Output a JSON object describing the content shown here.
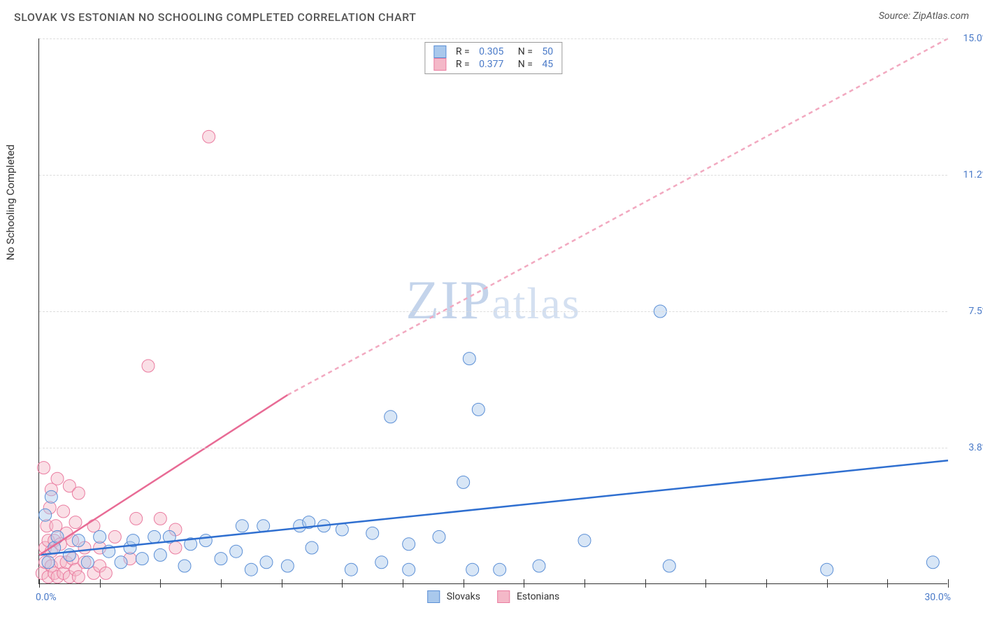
{
  "title": "SLOVAK VS ESTONIAN NO SCHOOLING COMPLETED CORRELATION CHART",
  "source_prefix": "Source: ",
  "source_name": "ZipAtlas.com",
  "watermark_big": "ZIP",
  "watermark_small": "atlas",
  "y_axis_title": "No Schooling Completed",
  "chart": {
    "type": "scatter",
    "background_color": "#ffffff",
    "grid_color": "#dddddd",
    "axis_color": "#333333",
    "xlim": [
      0,
      30
    ],
    "ylim": [
      0,
      15
    ],
    "x_start_label": "0.0%",
    "x_end_label": "30.0%",
    "x_ticks": [
      0,
      2,
      4,
      6,
      8,
      10,
      12,
      14,
      16,
      18,
      20,
      22,
      24,
      26,
      28,
      30
    ],
    "y_gridlines": [
      {
        "value": 3.75,
        "label": "3.8%"
      },
      {
        "value": 7.5,
        "label": "7.5%"
      },
      {
        "value": 11.25,
        "label": "11.2%"
      },
      {
        "value": 15.0,
        "label": "15.0%"
      }
    ],
    "series": [
      {
        "key": "slovaks",
        "label": "Slovaks",
        "fill_color": "#a9c8ec",
        "stroke_color": "#5b8fd6",
        "r_value": "0.305",
        "n_value": "50",
        "trend": {
          "x1": 0,
          "y1": 0.8,
          "x2": 30,
          "y2": 3.4,
          "color": "#2f6fd0",
          "dashed": false
        },
        "trend_proj": {
          "x1": 30,
          "y1": 3.4,
          "x2": 30,
          "y2": 3.4
        },
        "point_radius": 9,
        "points": [
          [
            0.2,
            1.9
          ],
          [
            0.3,
            0.6
          ],
          [
            0.4,
            2.4
          ],
          [
            0.5,
            1.0
          ],
          [
            0.6,
            1.3
          ],
          [
            1.0,
            0.8
          ],
          [
            1.3,
            1.2
          ],
          [
            1.6,
            0.6
          ],
          [
            2.0,
            1.3
          ],
          [
            2.3,
            0.9
          ],
          [
            2.7,
            0.6
          ],
          [
            3.0,
            1.0
          ],
          [
            3.1,
            1.2
          ],
          [
            3.4,
            0.7
          ],
          [
            3.8,
            1.3
          ],
          [
            4.0,
            0.8
          ],
          [
            4.3,
            1.3
          ],
          [
            4.8,
            0.5
          ],
          [
            5.0,
            1.1
          ],
          [
            5.5,
            1.2
          ],
          [
            6.0,
            0.7
          ],
          [
            6.5,
            0.9
          ],
          [
            7.0,
            0.4
          ],
          [
            7.4,
            1.6
          ],
          [
            7.5,
            0.6
          ],
          [
            8.2,
            0.5
          ],
          [
            8.6,
            1.6
          ],
          [
            9.0,
            1.0
          ],
          [
            9.4,
            1.6
          ],
          [
            10.0,
            1.5
          ],
          [
            10.3,
            0.4
          ],
          [
            11.0,
            1.4
          ],
          [
            11.3,
            0.6
          ],
          [
            11.6,
            4.6
          ],
          [
            12.2,
            1.1
          ],
          [
            12.2,
            0.4
          ],
          [
            13.2,
            1.3
          ],
          [
            14.0,
            2.8
          ],
          [
            14.2,
            6.2
          ],
          [
            14.3,
            0.4
          ],
          [
            14.5,
            4.8
          ],
          [
            15.2,
            0.4
          ],
          [
            16.5,
            0.5
          ],
          [
            18.0,
            1.2
          ],
          [
            20.5,
            7.5
          ],
          [
            20.8,
            0.5
          ],
          [
            26.0,
            0.4
          ],
          [
            29.5,
            0.6
          ],
          [
            8.9,
            1.7
          ],
          [
            6.7,
            1.6
          ]
        ]
      },
      {
        "key": "estonians",
        "label": "Estonians",
        "fill_color": "#f4b8c8",
        "stroke_color": "#ea7ca0",
        "r_value": "0.377",
        "n_value": "45",
        "trend": {
          "x1": 0,
          "y1": 0.8,
          "x2": 8.2,
          "y2": 5.2,
          "color": "#e86b95",
          "dashed": false
        },
        "trend_proj": {
          "x1": 8.2,
          "y1": 5.2,
          "x2": 30,
          "y2": 15.0,
          "color": "#f2a9c0",
          "dashed": true
        },
        "point_radius": 9,
        "points": [
          [
            0.1,
            0.3
          ],
          [
            0.2,
            0.6
          ],
          [
            0.2,
            1.0
          ],
          [
            0.25,
            1.6
          ],
          [
            0.3,
            0.2
          ],
          [
            0.3,
            1.2
          ],
          [
            0.35,
            2.1
          ],
          [
            0.4,
            0.5
          ],
          [
            0.4,
            0.9
          ],
          [
            0.4,
            2.6
          ],
          [
            0.5,
            0.3
          ],
          [
            0.5,
            1.2
          ],
          [
            0.55,
            1.6
          ],
          [
            0.6,
            0.2
          ],
          [
            0.6,
            2.9
          ],
          [
            0.7,
            0.6
          ],
          [
            0.7,
            1.1
          ],
          [
            0.8,
            0.3
          ],
          [
            0.8,
            2.0
          ],
          [
            0.9,
            0.6
          ],
          [
            0.9,
            1.4
          ],
          [
            1.0,
            0.2
          ],
          [
            1.0,
            2.7
          ],
          [
            1.1,
            0.7
          ],
          [
            1.1,
            1.2
          ],
          [
            1.2,
            0.4
          ],
          [
            1.2,
            1.7
          ],
          [
            1.3,
            0.2
          ],
          [
            1.3,
            2.5
          ],
          [
            1.5,
            0.6
          ],
          [
            1.5,
            1.0
          ],
          [
            1.8,
            0.3
          ],
          [
            1.8,
            1.6
          ],
          [
            2.0,
            0.5
          ],
          [
            2.0,
            1.0
          ],
          [
            2.2,
            0.3
          ],
          [
            2.5,
            1.3
          ],
          [
            3.0,
            0.7
          ],
          [
            3.2,
            1.8
          ],
          [
            3.6,
            6.0
          ],
          [
            4.0,
            1.8
          ],
          [
            4.5,
            1.5
          ],
          [
            4.5,
            1.0
          ],
          [
            5.6,
            12.3
          ],
          [
            0.15,
            3.2
          ]
        ]
      }
    ]
  },
  "legend_stats_template": {
    "r_prefix": "R = ",
    "n_prefix": "N = "
  }
}
